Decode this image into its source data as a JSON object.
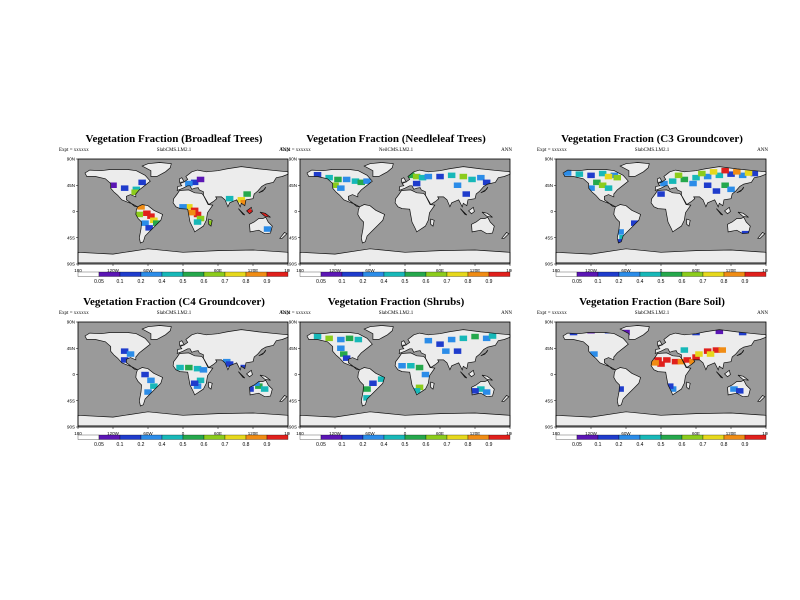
{
  "palette": [
    "#ffffff",
    "#5b16b4",
    "#1f3ccc",
    "#2b8ce8",
    "#17b8b8",
    "#25a84c",
    "#8ccc1c",
    "#e6d81c",
    "#f08c14",
    "#e0201c"
  ],
  "ocean_color": "#9a9a9a",
  "land_color": "#ececec",
  "map_ticks": {
    "x_labels": [
      "180",
      "120W",
      "60W",
      "0",
      "60E",
      "120E",
      "180"
    ],
    "y_labels": [
      "90N",
      "45N",
      "0",
      "45S",
      "90S"
    ]
  },
  "panels": [
    {
      "title": "Vegetation Fraction (Broadleaf Trees)",
      "expt": "Expt = xxxxxx",
      "model": "SlabCMS.LM2.1",
      "season": "ANN",
      "colorbar_labels": [
        "0.05",
        "0.1",
        "0.2",
        "0.4",
        "0.5",
        "0.6",
        "0.7",
        "0.8",
        "0.9"
      ],
      "cells": [
        [
          -120,
          45,
          1
        ],
        [
          -100,
          40,
          2
        ],
        [
          -80,
          38,
          4
        ],
        [
          -82,
          33,
          6
        ],
        [
          -72,
          8,
          8
        ],
        [
          -62,
          -3,
          9
        ],
        [
          -55,
          -8,
          9
        ],
        [
          -50,
          -15,
          7
        ],
        [
          -45,
          -20,
          5
        ],
        [
          -65,
          -20,
          3
        ],
        [
          -58,
          -28,
          2
        ],
        [
          -75,
          -5,
          6
        ],
        [
          10,
          8,
          7
        ],
        [
          20,
          2,
          9
        ],
        [
          25,
          -5,
          9
        ],
        [
          15,
          -2,
          8
        ],
        [
          30,
          -12,
          6
        ],
        [
          25,
          -18,
          4
        ],
        [
          0,
          8,
          3
        ],
        [
          47,
          -20,
          6
        ],
        [
          80,
          22,
          4
        ],
        [
          100,
          20,
          7
        ],
        [
          105,
          15,
          8
        ],
        [
          110,
          3,
          9
        ],
        [
          120,
          -2,
          9
        ],
        [
          140,
          -5,
          9
        ],
        [
          110,
          30,
          5
        ],
        [
          145,
          -30,
          3
        ],
        [
          20,
          50,
          2
        ],
        [
          10,
          48,
          3
        ],
        [
          30,
          55,
          1
        ],
        [
          -70,
          50,
          2
        ]
      ]
    },
    {
      "title": "Vegetation Fraction (Needleleaf Trees)",
      "expt": "Expt = xxxxxx",
      "model": "NeilCMS.LM2.1",
      "season": "ANN",
      "colorbar_labels": [
        "0.05",
        "0.1",
        "0.2",
        "0.4",
        "0.5",
        "0.6",
        "0.7",
        "0.8",
        "0.9"
      ],
      "cells": [
        [
          -150,
          63,
          2
        ],
        [
          -130,
          58,
          4
        ],
        [
          -115,
          55,
          5
        ],
        [
          -100,
          55,
          3
        ],
        [
          -85,
          52,
          4
        ],
        [
          -75,
          50,
          5
        ],
        [
          -65,
          52,
          3
        ],
        [
          -120,
          45,
          6
        ],
        [
          -110,
          40,
          3
        ],
        [
          10,
          62,
          5
        ],
        [
          20,
          60,
          6
        ],
        [
          30,
          58,
          4
        ],
        [
          40,
          60,
          3
        ],
        [
          60,
          60,
          2
        ],
        [
          80,
          62,
          4
        ],
        [
          100,
          60,
          6
        ],
        [
          115,
          55,
          4
        ],
        [
          130,
          58,
          3
        ],
        [
          140,
          50,
          2
        ],
        [
          90,
          45,
          3
        ],
        [
          20,
          48,
          2
        ],
        [
          105,
          30,
          2
        ]
      ]
    },
    {
      "title": "Vegetation Fraction (C3 Groundcover)",
      "expt": "Expt = xxxxxx",
      "model": "SlabCMS.LM2.1",
      "season": "ANN",
      "colorbar_labels": [
        "0.05",
        "0.1",
        "0.2",
        "0.4",
        "0.5",
        "0.6",
        "0.7",
        "0.8",
        "0.9"
      ],
      "cells": [
        [
          -160,
          66,
          3
        ],
        [
          -140,
          64,
          4
        ],
        [
          -120,
          62,
          2
        ],
        [
          -100,
          65,
          4
        ],
        [
          -80,
          62,
          3
        ],
        [
          -110,
          50,
          5
        ],
        [
          -100,
          45,
          6
        ],
        [
          -90,
          40,
          4
        ],
        [
          -120,
          40,
          3
        ],
        [
          -70,
          -35,
          3
        ],
        [
          -65,
          -45,
          4
        ],
        [
          -70,
          -52,
          2
        ],
        [
          -45,
          -20,
          2
        ],
        [
          5,
          48,
          3
        ],
        [
          20,
          52,
          4
        ],
        [
          40,
          55,
          5
        ],
        [
          60,
          58,
          4
        ],
        [
          80,
          60,
          3
        ],
        [
          100,
          62,
          4
        ],
        [
          120,
          64,
          2
        ],
        [
          140,
          62,
          3
        ],
        [
          160,
          65,
          2
        ],
        [
          55,
          48,
          3
        ],
        [
          80,
          45,
          2
        ],
        [
          110,
          45,
          5
        ],
        [
          95,
          35,
          2
        ],
        [
          120,
          38,
          3
        ],
        [
          145,
          -38,
          2
        ],
        [
          70,
          65,
          6
        ],
        [
          110,
          70,
          9
        ],
        [
          130,
          68,
          8
        ],
        [
          150,
          66,
          7
        ],
        [
          90,
          68,
          7
        ],
        [
          30,
          62,
          6
        ],
        [
          0,
          30,
          2
        ],
        [
          -90,
          60,
          7
        ],
        [
          -75,
          58,
          6
        ]
      ]
    },
    {
      "title": "Vegetation Fraction (C4 Groundcover)",
      "expt": "Expt = xxxxxx",
      "model": "SlabCMS.LM2.1",
      "season": "ANN",
      "colorbar_labels": [
        "0.05",
        "0.1",
        "0.2",
        "0.4",
        "0.5",
        "0.6",
        "0.7",
        "0.8",
        "0.9"
      ],
      "cells": [
        [
          -100,
          40,
          2
        ],
        [
          -90,
          35,
          3
        ],
        [
          -100,
          25,
          2
        ],
        [
          -55,
          -10,
          3
        ],
        [
          -50,
          -20,
          4
        ],
        [
          -60,
          -30,
          3
        ],
        [
          -65,
          0,
          2
        ],
        [
          -5,
          12,
          4
        ],
        [
          10,
          12,
          5
        ],
        [
          25,
          10,
          4
        ],
        [
          35,
          8,
          3
        ],
        [
          30,
          -10,
          4
        ],
        [
          25,
          -20,
          3
        ],
        [
          20,
          -15,
          2
        ],
        [
          75,
          22,
          3
        ],
        [
          80,
          18,
          2
        ],
        [
          130,
          -20,
          5
        ],
        [
          140,
          -25,
          4
        ],
        [
          125,
          -15,
          3
        ],
        [
          115,
          -25,
          2
        ],
        [
          105,
          12,
          2
        ]
      ]
    },
    {
      "title": "Vegetation Fraction (Shrubs)",
      "expt": "Expt = xxxxxx",
      "model": "SlabCMS.LM2.1",
      "season": "ANN",
      "colorbar_labels": [
        "0.05",
        "0.1",
        "0.2",
        "0.4",
        "0.5",
        "0.6",
        "0.7",
        "0.8",
        "0.9"
      ],
      "cells": [
        [
          -150,
          65,
          4
        ],
        [
          -130,
          62,
          6
        ],
        [
          -110,
          60,
          3
        ],
        [
          -95,
          62,
          5
        ],
        [
          -80,
          60,
          4
        ],
        [
          -110,
          45,
          3
        ],
        [
          -105,
          35,
          5
        ],
        [
          -100,
          28,
          2
        ],
        [
          -40,
          -8,
          4
        ],
        [
          -65,
          -25,
          5
        ],
        [
          -65,
          -40,
          4
        ],
        [
          -55,
          -15,
          2
        ],
        [
          -5,
          15,
          3
        ],
        [
          10,
          15,
          4
        ],
        [
          25,
          12,
          5
        ],
        [
          35,
          0,
          3
        ],
        [
          25,
          -22,
          6
        ],
        [
          20,
          -28,
          4
        ],
        [
          40,
          58,
          3
        ],
        [
          60,
          52,
          2
        ],
        [
          80,
          60,
          3
        ],
        [
          100,
          62,
          4
        ],
        [
          120,
          65,
          5
        ],
        [
          140,
          62,
          3
        ],
        [
          150,
          66,
          4
        ],
        [
          130,
          -25,
          4
        ],
        [
          140,
          -30,
          3
        ],
        [
          120,
          -28,
          2
        ],
        [
          70,
          40,
          3
        ],
        [
          90,
          40,
          2
        ]
      ]
    },
    {
      "title": "Vegetation Fraction (Bare Soil)",
      "expt": "Expt = xxxxxx",
      "model": "SlabCMS.LM2.1",
      "season": "ANN",
      "colorbar_labels": [
        "0.05",
        "0.1",
        "0.2",
        "0.4",
        "0.5",
        "0.6",
        "0.7",
        "0.8",
        "0.9"
      ],
      "cells": [
        [
          -150,
          72,
          2
        ],
        [
          -120,
          75,
          1
        ],
        [
          -90,
          75,
          2
        ],
        [
          -60,
          72,
          1
        ],
        [
          -115,
          35,
          3
        ],
        [
          -70,
          -25,
          2
        ],
        [
          -5,
          25,
          9
        ],
        [
          10,
          25,
          9
        ],
        [
          25,
          22,
          9
        ],
        [
          35,
          22,
          8
        ],
        [
          0,
          18,
          9
        ],
        [
          -10,
          20,
          8
        ],
        [
          45,
          25,
          9
        ],
        [
          55,
          22,
          8
        ],
        [
          60,
          30,
          9
        ],
        [
          65,
          35,
          7
        ],
        [
          80,
          40,
          9
        ],
        [
          95,
          42,
          9
        ],
        [
          105,
          42,
          8
        ],
        [
          85,
          35,
          7
        ],
        [
          20,
          -25,
          3
        ],
        [
          15,
          -20,
          2
        ],
        [
          125,
          -25,
          3
        ],
        [
          135,
          -28,
          2
        ],
        [
          60,
          72,
          2
        ],
        [
          100,
          74,
          1
        ],
        [
          140,
          72,
          2
        ],
        [
          40,
          42,
          4
        ]
      ]
    }
  ]
}
